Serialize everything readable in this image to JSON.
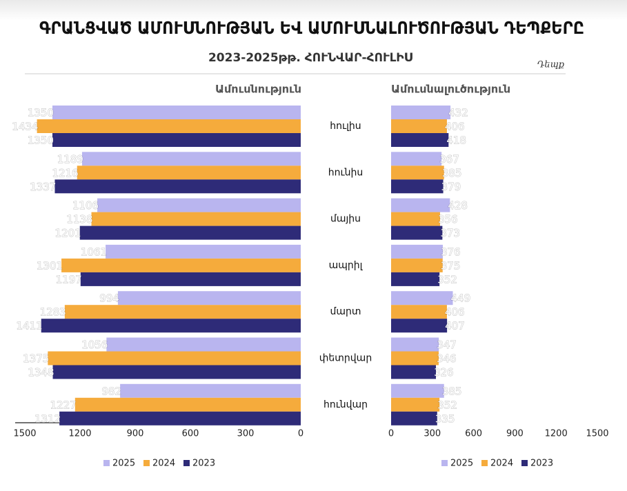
{
  "chart_data": {
    "type": "bar",
    "title": "ԳՐԱՆՑՎԱԾ ԱՄՈՒՍՆՈՒԹՅԱՆ ԵՎ ԱՄՈՒՍՆԱԼՈՒԾՈՒԹՅԱՆ ԴԵՊՔԵՐԸ",
    "subtitle": "2023-2025թթ. ՀՈՒՆՎԱՐ-ՀՈՒԼԻՍ",
    "source": "Դեպք",
    "categories": [
      "հուլիս",
      "հունիս",
      "մայիս",
      "ապրիլ",
      "մարտ",
      "փետրվար",
      "հունվար"
    ],
    "panels": [
      {
        "title": "Ամուսնություն",
        "reversed": true,
        "xlim": [
          0,
          1500
        ],
        "xticks": [
          0,
          300,
          600,
          900,
          1200,
          1500
        ],
        "series": [
          {
            "name": "2025",
            "color": "#b9b5ef",
            "values": [
              1350,
              1189,
              1106,
              1061,
              994,
              1056,
              982
            ]
          },
          {
            "name": "2024",
            "color": "#f5ab3c",
            "values": [
              1434,
              1216,
              1138,
              1301,
              1283,
              1375,
              1227
            ]
          },
          {
            "name": "2023",
            "color": "#2e2b78",
            "values": [
              1350,
              1337,
              1201,
              1197,
              1411,
              1348,
              1312
            ]
          }
        ]
      },
      {
        "title": "Ամուսնալուծություն",
        "reversed": false,
        "xlim": [
          0,
          1500
        ],
        "xticks": [
          0,
          300,
          600,
          900,
          1200,
          1500
        ],
        "series": [
          {
            "name": "2025",
            "color": "#b9b5ef",
            "values": [
              432,
              367,
              428,
              376,
              449,
              347,
              385
            ]
          },
          {
            "name": "2024",
            "color": "#f5ab3c",
            "values": [
              406,
              385,
              356,
              375,
              406,
              346,
              352
            ]
          },
          {
            "name": "2023",
            "color": "#2e2b78",
            "values": [
              418,
              379,
              373,
              352,
              407,
              326,
              335
            ]
          }
        ]
      }
    ]
  }
}
